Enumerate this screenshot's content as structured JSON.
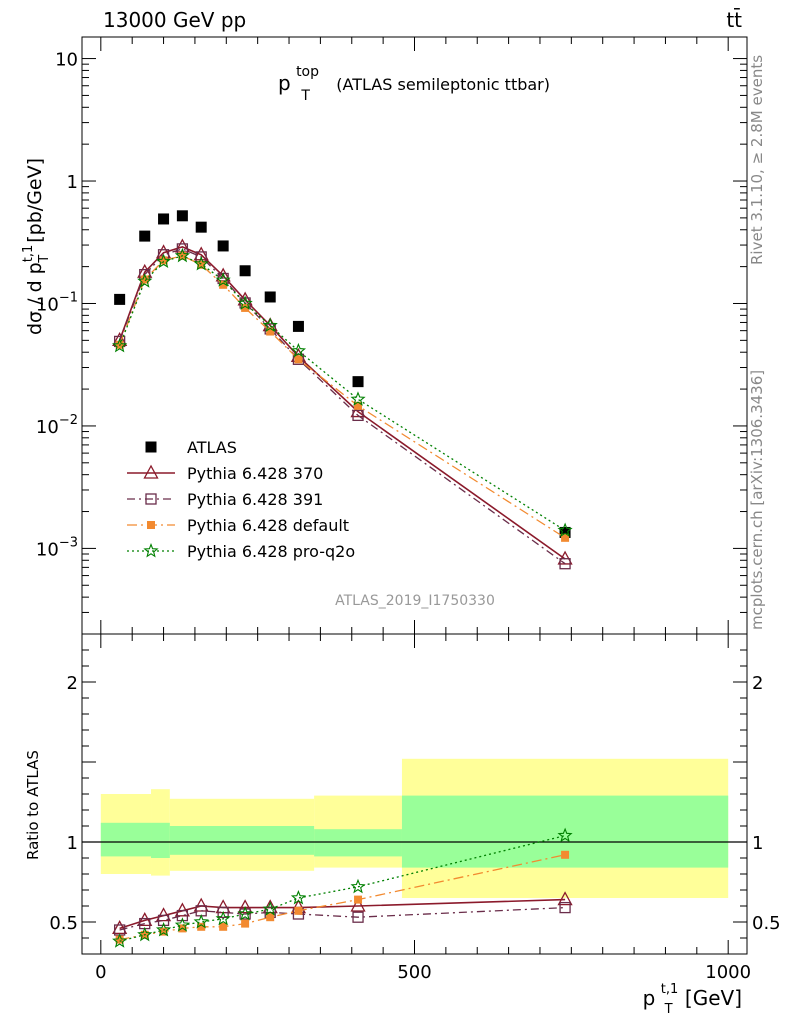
{
  "header": {
    "energy": "13000 GeV pp",
    "process": "tt̄",
    "rivet": "Rivet 3.1.10, ≥ 2.8M events",
    "site": "mcplots.cern.ch [arXiv:1306.3436]",
    "analysis_id": "ATLAS_2019_I1750330"
  },
  "chart_data": [
    {
      "type": "scatter",
      "title": "p_T^top (ATLAS semileptonic ttbar)",
      "title_main": "p",
      "title_sub": "T",
      "title_sup": "top",
      "title_rest": "(ATLAS semileptonic ttbar)",
      "ylabel": "dσ / d p_T^t,1 [pb/GeV]",
      "yscale": "log",
      "ylim": [
        0.0002,
        15
      ],
      "xlim": [
        -30,
        1030
      ],
      "yticks": [
        {
          "v": 10,
          "m": "10",
          "e": ""
        },
        {
          "v": 1,
          "m": "1",
          "e": ""
        },
        {
          "v": 0.1,
          "m": "10",
          "e": "−1"
        },
        {
          "v": 0.01,
          "m": "10",
          "e": "−2"
        },
        {
          "v": 0.001,
          "m": "10",
          "e": "−3"
        }
      ],
      "legend_position": "bottom-left",
      "x": [
        30,
        70,
        100,
        130,
        160,
        195,
        230,
        270,
        315,
        410,
        740
      ],
      "series": [
        {
          "name": "ATLAS",
          "color": "#000000",
          "marker": "filled-square",
          "values": [
            0.108,
            0.355,
            0.49,
            0.52,
            0.42,
            0.295,
            0.185,
            0.113,
            0.065,
            0.023,
            0.00135
          ]
        },
        {
          "name": "Pythia 6.428 370",
          "color": "#8b1a2b",
          "marker": "open-triangle",
          "dash": "",
          "values": [
            0.05,
            0.18,
            0.26,
            0.29,
            0.25,
            0.168,
            0.107,
            0.066,
            0.037,
            0.0131,
            0.00082
          ]
        },
        {
          "name": "Pythia 6.428 391",
          "color": "#6a2d4a",
          "marker": "open-square",
          "dash": "8,4,2,4",
          "values": [
            0.049,
            0.172,
            0.25,
            0.279,
            0.24,
            0.16,
            0.101,
            0.062,
            0.035,
            0.0122,
            0.00075
          ]
        },
        {
          "name": "Pythia 6.428 default",
          "color": "#f28a30",
          "marker": "filled-square",
          "dash": "10,4,2,4",
          "values": [
            0.046,
            0.157,
            0.225,
            0.245,
            0.207,
            0.142,
            0.092,
            0.059,
            0.035,
            0.0146,
            0.00122
          ]
        },
        {
          "name": "Pythia 6.428 pro-q2o",
          "color": "#008000",
          "marker": "star",
          "dash": "2,3",
          "values": [
            0.045,
            0.152,
            0.22,
            0.245,
            0.21,
            0.155,
            0.1,
            0.066,
            0.041,
            0.0165,
            0.0014
          ]
        }
      ]
    },
    {
      "type": "scatter",
      "ylabel": "Ratio to ATLAS",
      "xlabel": "p_T^t,1 [GeV]",
      "xlabel_main": "p",
      "xlabel_sub": "T",
      "xlabel_sup": "t,1",
      "xlabel_unit": "[GeV]",
      "ylim": [
        0.3,
        2.3
      ],
      "xlim": [
        -30,
        1030
      ],
      "xticks": [
        0,
        500,
        1000
      ],
      "yticks": [
        0.5,
        1,
        2
      ],
      "reference_line": 1,
      "bands": [
        {
          "x0": 0,
          "x1": 80,
          "yellow": [
            0.8,
            1.3
          ],
          "green": [
            0.91,
            1.12
          ]
        },
        {
          "x0": 80,
          "x1": 110,
          "yellow": [
            0.79,
            1.33
          ],
          "green": [
            0.9,
            1.12
          ]
        },
        {
          "x0": 110,
          "x1": 340,
          "yellow": [
            0.82,
            1.27
          ],
          "green": [
            0.92,
            1.1
          ]
        },
        {
          "x0": 340,
          "x1": 480,
          "yellow": [
            0.84,
            1.29
          ],
          "green": [
            0.91,
            1.08
          ]
        },
        {
          "x0": 480,
          "x1": 1000,
          "yellow": [
            0.65,
            1.52
          ],
          "green": [
            0.84,
            1.29
          ]
        }
      ],
      "x": [
        30,
        70,
        100,
        130,
        160,
        195,
        230,
        270,
        315,
        410,
        740
      ],
      "series": [
        {
          "name": "Pythia 6.428 370",
          "color": "#8b1a2b",
          "marker": "open-triangle",
          "dash": "",
          "values": [
            0.46,
            0.51,
            0.54,
            0.57,
            0.6,
            0.59,
            0.59,
            0.59,
            0.59,
            0.6,
            0.64
          ]
        },
        {
          "name": "Pythia 6.428 391",
          "color": "#6a2d4a",
          "marker": "open-square",
          "dash": "8,4,2,4",
          "values": [
            0.45,
            0.49,
            0.51,
            0.54,
            0.57,
            0.56,
            0.55,
            0.56,
            0.55,
            0.53,
            0.59
          ]
        },
        {
          "name": "Pythia 6.428 default",
          "color": "#f28a30",
          "marker": "filled-square",
          "dash": "10,4,2,4",
          "values": [
            0.39,
            0.42,
            0.44,
            0.46,
            0.47,
            0.47,
            0.49,
            0.53,
            0.57,
            0.64,
            0.92
          ]
        },
        {
          "name": "Pythia 6.428 pro-q2o",
          "color": "#008000",
          "marker": "star",
          "dash": "2,3",
          "values": [
            0.38,
            0.42,
            0.45,
            0.48,
            0.5,
            0.52,
            0.55,
            0.58,
            0.65,
            0.72,
            1.04
          ]
        }
      ]
    }
  ]
}
